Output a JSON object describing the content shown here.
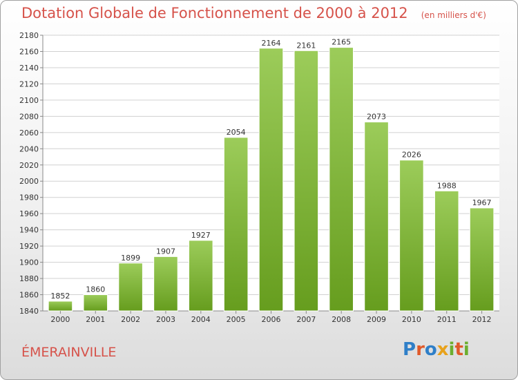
{
  "header": {
    "title": "Dotation Globale de Fonctionnement de 2000 à 2012",
    "subtitle": "(en milliers d'€)"
  },
  "footer": {
    "commune": "ÉMERAINVILLE",
    "logo": "Proxiti"
  },
  "colors": {
    "bar_light": "#9ccc5a",
    "bar_dark": "#669d1e",
    "title": "#d6524a",
    "grid": "#d0d0d0"
  },
  "chart_data": {
    "type": "bar",
    "categories": [
      "2000",
      "2001",
      "2002",
      "2003",
      "2004",
      "2005",
      "2006",
      "2007",
      "2008",
      "2009",
      "2010",
      "2011",
      "2012"
    ],
    "values": [
      1852,
      1860,
      1899,
      1907,
      1927,
      2054,
      2164,
      2161,
      2165,
      2073,
      2026,
      1988,
      1967
    ],
    "title": "Dotation Globale de Fonctionnement de 2000 à 2012",
    "subtitle": "(en milliers d'€)",
    "ylim": [
      1840,
      2180
    ],
    "ytick_step": 20,
    "grid": true,
    "data_labels": true
  }
}
